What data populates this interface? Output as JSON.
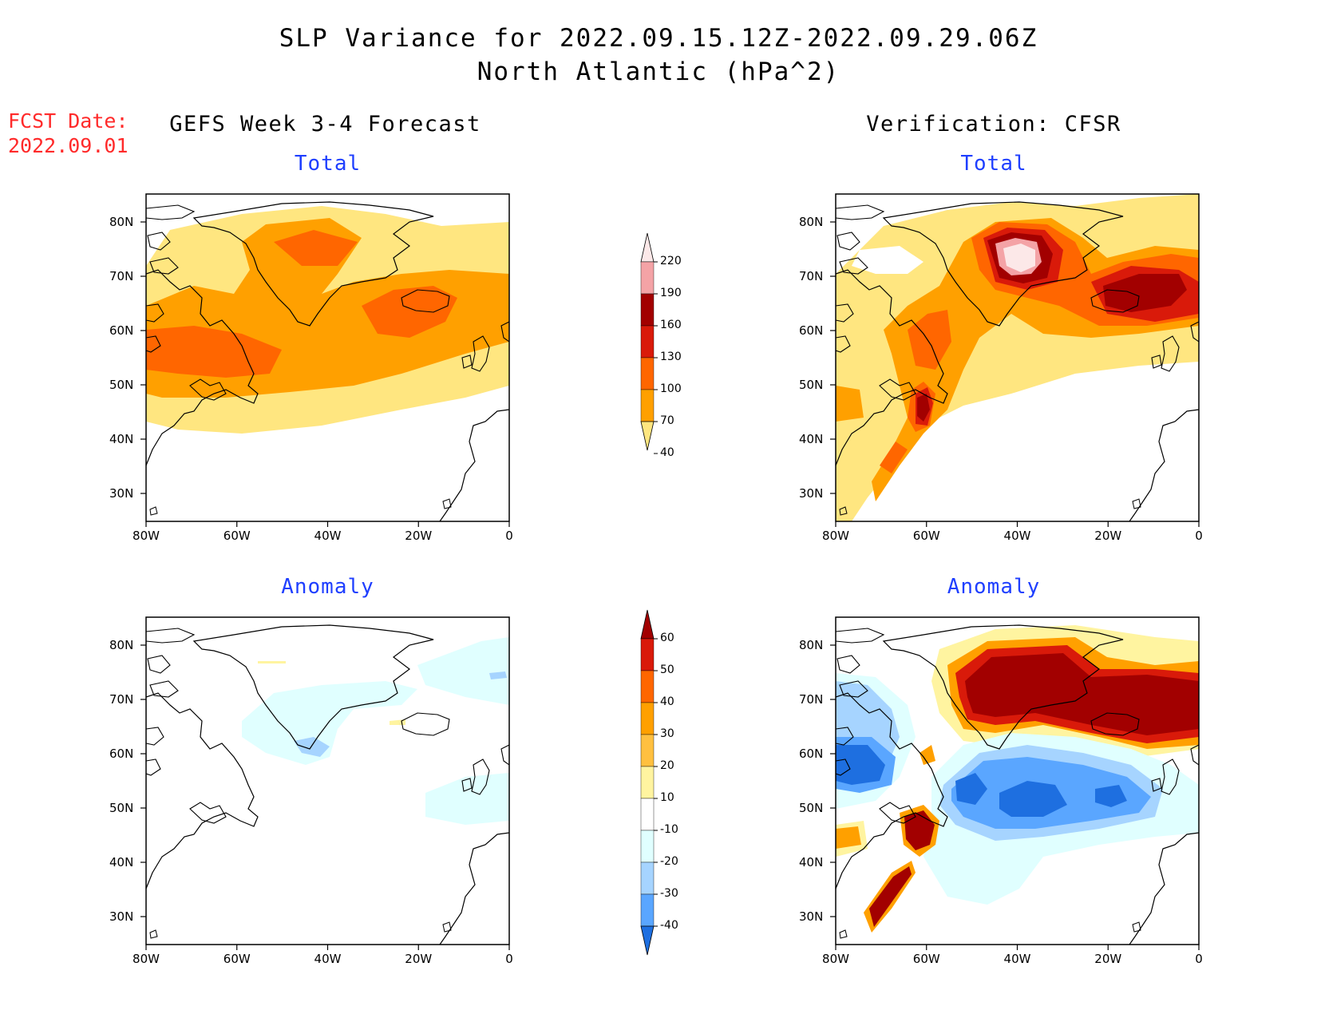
{
  "header": {
    "title_line1": "SLP Variance for 2022.09.15.12Z-2022.09.29.06Z",
    "title_line2": "North Atlantic (hPa^2)",
    "fcst_label": "FCST Date:",
    "fcst_date": "2022.09.01"
  },
  "columns": {
    "left": "GEFS Week 3-4 Forecast",
    "right": "Verification: CFSR"
  },
  "panels": {
    "tl": "Total",
    "tr": "Total",
    "bl": "Anomaly",
    "br": "Anomaly"
  },
  "axes": {
    "lat_ticks": [
      "80N",
      "70N",
      "60N",
      "50N",
      "40N",
      "30N"
    ],
    "lon_ticks": [
      "80W",
      "60W",
      "40W",
      "20W",
      "0"
    ]
  },
  "colorbar_total": {
    "levels": [
      "220",
      "190",
      "160",
      "130",
      "100",
      "70",
      "40"
    ],
    "colors": [
      "#fce8e8",
      "#f4a3a6",
      "#a20000",
      "#d91a0a",
      "#ff6600",
      "#ffa000",
      "#ffe680"
    ]
  },
  "colorbar_anomaly": {
    "levels": [
      "60",
      "50",
      "40",
      "30",
      "20",
      "10",
      "-10",
      "-20",
      "-30",
      "-40"
    ],
    "colors": [
      "#a20000",
      "#d91a0a",
      "#ff6600",
      "#ffa000",
      "#ffc040",
      "#fff4a0",
      "#ffffff",
      "#e0ffff",
      "#a6d4ff",
      "#5aa6ff",
      "#1e6fe0"
    ]
  }
}
